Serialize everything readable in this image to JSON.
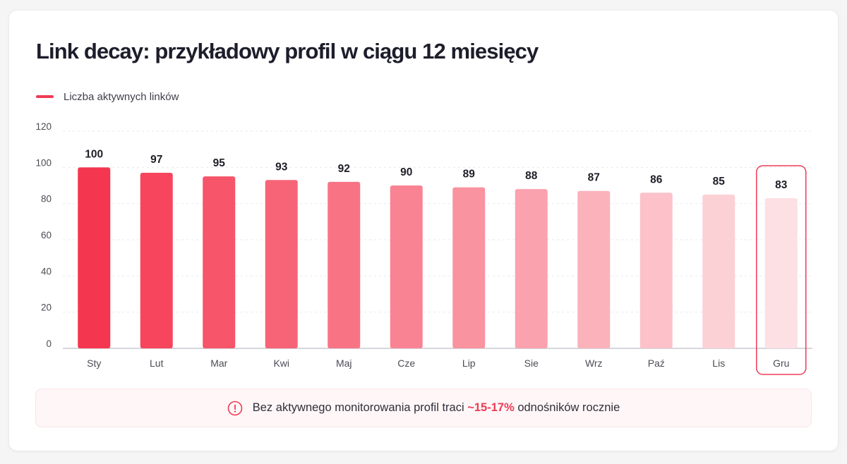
{
  "card": {
    "title": "Link decay: przykładowy profil w ciągu 12 miesięcy"
  },
  "chart_data": {
    "type": "bar",
    "title": "Link decay: przykładowy profil w ciągu 12 miesięcy",
    "xlabel": "",
    "ylabel": "",
    "categories": [
      "Sty",
      "Lut",
      "Mar",
      "Kwi",
      "Maj",
      "Cze",
      "Lip",
      "Sie",
      "Wrz",
      "Paź",
      "Lis",
      "Gru"
    ],
    "series": [
      {
        "name": "Liczba aktywnych linków",
        "values": [
          100,
          97,
          95,
          93,
          92,
          90,
          89,
          88,
          87,
          86,
          85,
          83
        ]
      }
    ],
    "data_labels": [
      "100",
      "97",
      "95",
      "93",
      "92",
      "90",
      "89",
      "88",
      "87",
      "86",
      "85",
      "83"
    ],
    "ylim": [
      0,
      120
    ],
    "yticks": [
      0,
      20,
      40,
      60,
      80,
      100,
      120
    ],
    "grid": true,
    "legend_position": "top-left",
    "highlighted_category": "Gru",
    "colors": {
      "bar_start": "#f5364f",
      "bar_end": "#fde0e4",
      "accent": "#ee3b54",
      "axis": "#4b4b55",
      "grid": "#e9e9ee"
    }
  },
  "callout": {
    "text_before": "Bez aktywnego monitorowania profil traci ",
    "emphasis": "~15-17%",
    "text_after": " odnośników rocznie",
    "icon": "info-circle-icon"
  }
}
